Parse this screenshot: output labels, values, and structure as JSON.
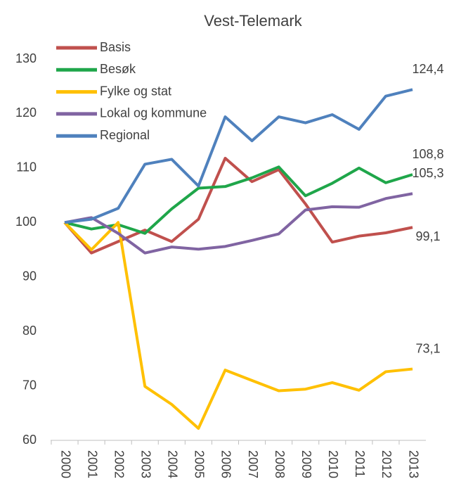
{
  "chart_data": {
    "type": "line",
    "title": "Vest-Telemark",
    "categories": [
      "2000",
      "2001",
      "2002",
      "2003",
      "2004",
      "2005",
      "2006",
      "2007",
      "2008",
      "2009",
      "2010",
      "2011",
      "2012",
      "2013"
    ],
    "series": [
      {
        "name": "Basis",
        "color": "#c0504d",
        "values": [
          100,
          94.4,
          96.5,
          98.6,
          96.5,
          100.6,
          111.8,
          107.5,
          109.7,
          103.4,
          96.4,
          97.5,
          98.1,
          99.1
        ],
        "value_labels": [
          null,
          null,
          null,
          null,
          null,
          null,
          null,
          null,
          null,
          null,
          null,
          null,
          null,
          "99,1"
        ]
      },
      {
        "name": "Besøk",
        "color": "#1fa64a",
        "values": [
          100,
          98.8,
          99.6,
          98.0,
          102.5,
          106.3,
          106.6,
          108.2,
          110.2,
          104.9,
          107.2,
          110.0,
          107.3,
          108.8
        ],
        "value_labels": [
          null,
          null,
          null,
          null,
          null,
          null,
          null,
          null,
          null,
          null,
          null,
          null,
          null,
          "108,8"
        ]
      },
      {
        "name": "Fylke og stat",
        "color": "#ffc000",
        "values": [
          100,
          95.0,
          100,
          69.9,
          66.6,
          62.2,
          72.9,
          71.0,
          69.1,
          69.4,
          70.6,
          69.2,
          72.6,
          73.1
        ],
        "value_labels": [
          null,
          null,
          null,
          null,
          null,
          null,
          null,
          null,
          null,
          null,
          null,
          null,
          null,
          "73,1"
        ]
      },
      {
        "name": "Lokal og kommune",
        "color": "#8064a2",
        "values": [
          100,
          100.9,
          98.0,
          94.4,
          95.5,
          95.1,
          95.6,
          96.7,
          97.9,
          102.3,
          102.9,
          102.8,
          104.4,
          105.3
        ],
        "value_labels": [
          null,
          null,
          null,
          null,
          null,
          null,
          null,
          null,
          null,
          null,
          null,
          null,
          null,
          "105,3"
        ]
      },
      {
        "name": "Regional",
        "color": "#4f81bd",
        "values": [
          100,
          100.6,
          102.6,
          110.7,
          111.6,
          106.7,
          119.4,
          115.0,
          119.4,
          118.3,
          119.8,
          117.1,
          123.2,
          124.4
        ],
        "value_labels": [
          null,
          null,
          null,
          null,
          null,
          null,
          null,
          null,
          null,
          null,
          null,
          null,
          null,
          "124,4"
        ]
      }
    ],
    "ylim": [
      60,
      130
    ],
    "yticks": [
      60,
      70,
      80,
      90,
      100,
      110,
      120,
      130
    ],
    "legend": "upper left"
  }
}
